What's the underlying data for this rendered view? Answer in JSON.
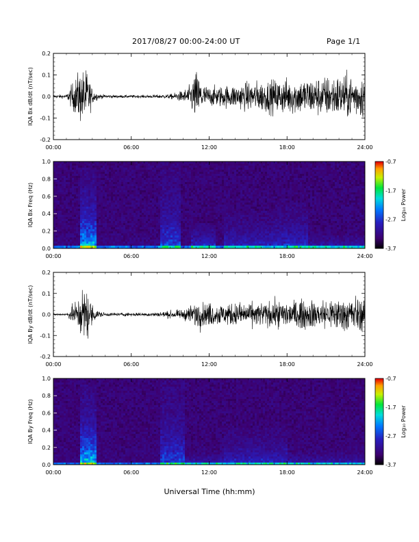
{
  "header": {
    "title": "2017/08/27  00:00-24:00 UT",
    "page": "Page 1/1"
  },
  "xlabel": "Universal Time (hh:mm)",
  "colors": {
    "waveform": "#000000",
    "background": "#ffffff"
  },
  "chart_data": [
    {
      "type": "line",
      "ylabel": "IQA Bx dB/dt (nT/sec)",
      "xlim": [
        0,
        24
      ],
      "ylim": [
        -0.2,
        0.2
      ],
      "x_ticks": [
        "00:00",
        "06:00",
        "12:00",
        "18:00",
        "24:00"
      ],
      "y_ticks": [
        "0.2",
        "0.1",
        "0.0",
        "-0.1",
        "-0.2"
      ],
      "envelope_hours": [
        0,
        1,
        2,
        2.2,
        2.6,
        3,
        3.5,
        4,
        5,
        6,
        7,
        8,
        9,
        10,
        10.5,
        11,
        11.3,
        11.6,
        12,
        13,
        14,
        15,
        16,
        17,
        18,
        19,
        20,
        21,
        22,
        23,
        24
      ],
      "envelope_amp": [
        0.015,
        0.015,
        0.22,
        0.22,
        0.22,
        0.06,
        0.02,
        0.015,
        0.012,
        0.012,
        0.012,
        0.015,
        0.02,
        0.05,
        0.09,
        0.22,
        0.15,
        0.1,
        0.08,
        0.09,
        0.1,
        0.12,
        0.13,
        0.14,
        0.15,
        0.15,
        0.16,
        0.17,
        0.18,
        0.18,
        0.18
      ]
    },
    {
      "type": "heatmap",
      "ylabel": "IQA Bx Freq (Hz)",
      "xlim": [
        0,
        24
      ],
      "ylim": [
        0,
        1.0
      ],
      "x_ticks": [
        "00:00",
        "06:00",
        "12:00",
        "18:00",
        "24:00"
      ],
      "y_ticks": [
        "1.0",
        "0.8",
        "0.6",
        "0.4",
        "0.2",
        "0.0"
      ],
      "colorbar": {
        "label": "Log₁₀ Power",
        "ticks": [
          "-0.7",
          "-1.7",
          "-2.7",
          "-3.7"
        ],
        "range": [
          -3.7,
          -0.7
        ]
      },
      "features": [
        {
          "t0": 2.0,
          "t1": 3.3,
          "f_top": 0.95,
          "strength": 0.9
        },
        {
          "t0": 8.2,
          "t1": 9.8,
          "f_top": 0.98,
          "strength": 0.5
        },
        {
          "t0": 10.5,
          "t1": 12.5,
          "f_top": 0.3,
          "strength": 0.55
        },
        {
          "t0": 13.0,
          "t1": 17.0,
          "f_top": 0.45,
          "strength": 0.4
        },
        {
          "t0": 17.0,
          "t1": 19.5,
          "f_top": 0.55,
          "strength": 0.45
        },
        {
          "t0": 19.5,
          "t1": 24.0,
          "f_top": 0.15,
          "strength": 0.5
        }
      ]
    },
    {
      "type": "line",
      "ylabel": "IQA By dB/dt (nT/sec)",
      "xlim": [
        0,
        24
      ],
      "ylim": [
        -0.2,
        0.2
      ],
      "x_ticks": [
        "00:00",
        "06:00",
        "12:00",
        "18:00",
        "24:00"
      ],
      "y_ticks": [
        "0.2",
        "0.1",
        "0.0",
        "-0.1",
        "-0.2"
      ],
      "envelope_hours": [
        0,
        1,
        2,
        2.2,
        2.6,
        3,
        3.5,
        4,
        5,
        6,
        7,
        8,
        9,
        10,
        10.5,
        11,
        11.5,
        12,
        13,
        14,
        15,
        16,
        17,
        18,
        19,
        20,
        21,
        22,
        23,
        24
      ],
      "envelope_amp": [
        0.01,
        0.01,
        0.15,
        0.22,
        0.22,
        0.08,
        0.03,
        0.015,
        0.015,
        0.015,
        0.015,
        0.02,
        0.03,
        0.04,
        0.07,
        0.12,
        0.1,
        0.1,
        0.09,
        0.1,
        0.1,
        0.1,
        0.11,
        0.12,
        0.12,
        0.12,
        0.13,
        0.14,
        0.15,
        0.14
      ]
    },
    {
      "type": "heatmap",
      "ylabel": "IQA By Freq (Hz)",
      "xlim": [
        0,
        24
      ],
      "ylim": [
        0,
        1.0
      ],
      "x_ticks": [
        "00:00",
        "06:00",
        "12:00",
        "18:00",
        "24:00"
      ],
      "y_ticks": [
        "1.0",
        "0.8",
        "0.6",
        "0.4",
        "0.2",
        "0.0"
      ],
      "colorbar": {
        "label": "Log₁₀ Power",
        "ticks": [
          "-0.7",
          "-1.7",
          "-2.7",
          "-3.7"
        ],
        "range": [
          -3.7,
          -0.7
        ]
      },
      "features": [
        {
          "t0": 2.0,
          "t1": 3.3,
          "f_top": 0.95,
          "strength": 0.9
        },
        {
          "t0": 8.2,
          "t1": 10.0,
          "f_top": 0.98,
          "strength": 0.5
        },
        {
          "t0": 10.0,
          "t1": 13.0,
          "f_top": 0.15,
          "strength": 0.45
        },
        {
          "t0": 13.0,
          "t1": 18.0,
          "f_top": 0.45,
          "strength": 0.4
        },
        {
          "t0": 18.0,
          "t1": 24.0,
          "f_top": 0.15,
          "strength": 0.45
        }
      ]
    }
  ]
}
